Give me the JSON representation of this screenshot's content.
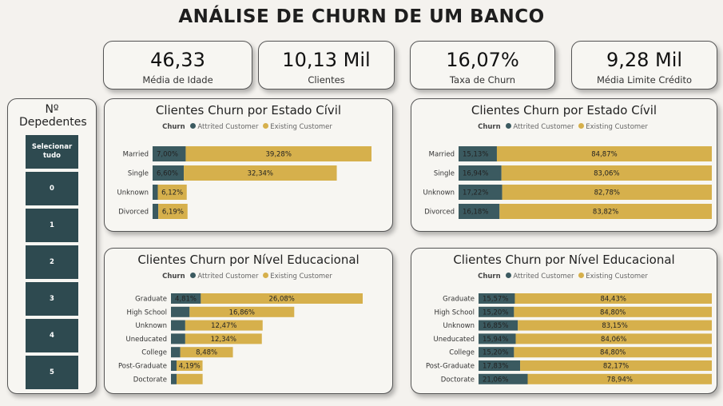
{
  "title": "ANÁLISE DE CHURN DE UM BANCO",
  "kpis": [
    {
      "value": "46,33",
      "label": "Média de Idade"
    },
    {
      "value": "10,13 Mil",
      "label": "Clientes"
    },
    {
      "value": "16,07%",
      "label": "Taxa de  Churn"
    },
    {
      "value": "9,28 Mil",
      "label": "Média Limite Crédito"
    }
  ],
  "slicer": {
    "title": "Nº Depedentes",
    "items": [
      "Selecionar tudo",
      "0",
      "1",
      "2",
      "3",
      "4",
      "5"
    ]
  },
  "legend": {
    "title": "Churn",
    "attrited": "Attrited Customer",
    "existing": "Existing Customer",
    "attrited_color": "#3b5a60",
    "existing_color": "#d6b04c"
  },
  "chart_data": [
    {
      "type": "bar",
      "orientation": "horizontal",
      "stacked": true,
      "title": "Clientes Churn por Estado Cívil",
      "categories": [
        "Married",
        "Single",
        "Unknown",
        "Divorced"
      ],
      "series": [
        {
          "name": "Attrited Customer",
          "values": [
            7.0,
            6.6,
            1.1,
            1.2
          ],
          "labels": [
            "7,00%",
            "6,60%",
            "",
            ""
          ]
        },
        {
          "name": "Existing Customer",
          "values": [
            39.28,
            32.34,
            6.12,
            6.19
          ],
          "labels": [
            "39,28%",
            "32,34%",
            "6,12%",
            "6,19%"
          ]
        }
      ],
      "xlim": [
        0,
        46.28
      ]
    },
    {
      "type": "bar",
      "orientation": "horizontal",
      "stacked": true,
      "percent": true,
      "title": "Clientes Churn por Estado Cívil",
      "categories": [
        "Married",
        "Single",
        "Unknown",
        "Divorced"
      ],
      "series": [
        {
          "name": "Attrited Customer",
          "values": [
            15.13,
            16.94,
            17.22,
            16.18
          ],
          "labels": [
            "15,13%",
            "16,94%",
            "17,22%",
            "16,18%"
          ]
        },
        {
          "name": "Existing Customer",
          "values": [
            84.87,
            83.06,
            82.78,
            83.82
          ],
          "labels": [
            "84,87%",
            "83,06%",
            "82,78%",
            "83,82%"
          ]
        }
      ],
      "xlim": [
        0,
        100
      ]
    },
    {
      "type": "bar",
      "orientation": "horizontal",
      "stacked": true,
      "title": "Clientes Churn por Nível Educacional",
      "categories": [
        "Graduate",
        "High School",
        "Unknown",
        "Uneducated",
        "College",
        "Post-Graduate",
        "Doctorate"
      ],
      "series": [
        {
          "name": "Attrited Customer",
          "values": [
            4.81,
            3.0,
            2.3,
            2.3,
            1.5,
            0.9,
            0.9
          ],
          "labels": [
            "4,81%",
            "",
            "",
            "",
            "",
            "",
            ""
          ]
        },
        {
          "name": "Existing Customer",
          "values": [
            26.08,
            16.86,
            12.47,
            12.34,
            8.48,
            4.19,
            4.2
          ],
          "labels": [
            "26,08%",
            "16,86%",
            "12,47%",
            "12,34%",
            "8,48%",
            "4,19%",
            ""
          ]
        }
      ],
      "xlim": [
        0,
        30.89
      ]
    },
    {
      "type": "bar",
      "orientation": "horizontal",
      "stacked": true,
      "percent": true,
      "title": "Clientes Churn por Nível Educacional",
      "categories": [
        "Graduate",
        "High School",
        "Unknown",
        "Uneducated",
        "College",
        "Post-Graduate",
        "Doctorate"
      ],
      "series": [
        {
          "name": "Attrited Customer",
          "values": [
            15.57,
            15.2,
            16.85,
            15.94,
            15.2,
            17.83,
            21.06
          ],
          "labels": [
            "15,57%",
            "15,20%",
            "16,85%",
            "15,94%",
            "15,20%",
            "17,83%",
            "21,06%"
          ]
        },
        {
          "name": "Existing Customer",
          "values": [
            84.43,
            84.8,
            83.15,
            84.06,
            84.8,
            82.17,
            78.94
          ],
          "labels": [
            "84,43%",
            "84,80%",
            "83,15%",
            "84,06%",
            "84,80%",
            "82,17%",
            "78,94%"
          ]
        }
      ],
      "xlim": [
        0,
        100
      ]
    }
  ]
}
